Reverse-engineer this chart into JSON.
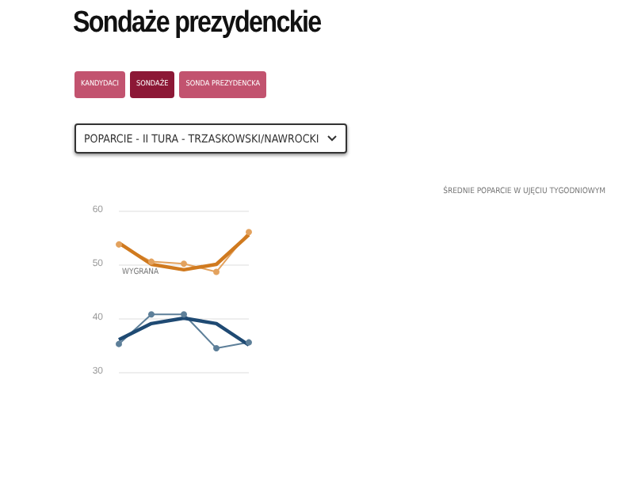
{
  "chart_data": {
    "type": "line",
    "title": "Sondaże prezydenckie",
    "subtitle": "POPARCIE - II TURA - TRZASKOWSKI/NAWROCKI",
    "annotations": [
      "KANDYDACI",
      "SONDAŻE",
      "SONDA PREZYDENCKA",
      "ŚREDNIE POPARCIE W UJĘCIU TYGODNIOWYM",
      "WYGRANA"
    ],
    "categories": [
      null,
      null,
      null,
      null,
      null
    ],
    "series": [
      {
        "color": "#e3a25e",
        "marker": "circle",
        "values": [
          53.7,
          50.5,
          50.1,
          48.6,
          56
        ]
      },
      {
        "color": "#d07a1f",
        "marker": "none",
        "values": [
          54,
          50,
          49,
          50,
          55.5
        ]
      },
      {
        "color": "#5d7f99",
        "marker": "circle",
        "values": [
          35.2,
          40.7,
          40.7,
          34.4,
          35.5
        ]
      },
      {
        "color": "#1f4a73",
        "marker": "none",
        "values": [
          36,
          39,
          40,
          39,
          35
        ]
      }
    ],
    "ylim": [
      30,
      60
    ],
    "yticks": [
      30,
      40,
      50,
      60
    ],
    "grid": "y",
    "line_style": "solid"
  }
}
